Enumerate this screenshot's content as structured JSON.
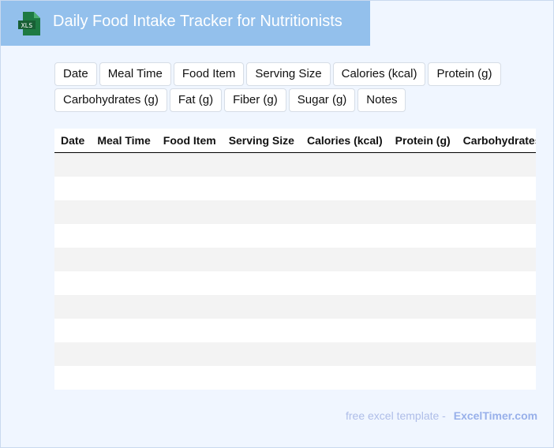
{
  "header": {
    "title": "Daily Food Intake Tracker for Nutritionists",
    "logo_text": "XLS",
    "logo_color": "#1e7a43",
    "bg": "#93c0ec"
  },
  "columns": [
    "Date",
    "Meal Time",
    "Food Item",
    "Serving Size",
    "Calories (kcal)",
    "Protein (g)",
    "Carbohydrates (g)",
    "Fat (g)",
    "Fiber (g)",
    "Sugar (g)",
    "Notes"
  ],
  "table": {
    "headers": [
      "Date",
      "Meal Time",
      "Food Item",
      "Serving Size",
      "Calories (kcal)",
      "Protein (g)",
      "Carbohydrates"
    ],
    "empty_rows": 10
  },
  "footer": {
    "text": "free excel template -",
    "brand": "ExcelTimer.com"
  }
}
